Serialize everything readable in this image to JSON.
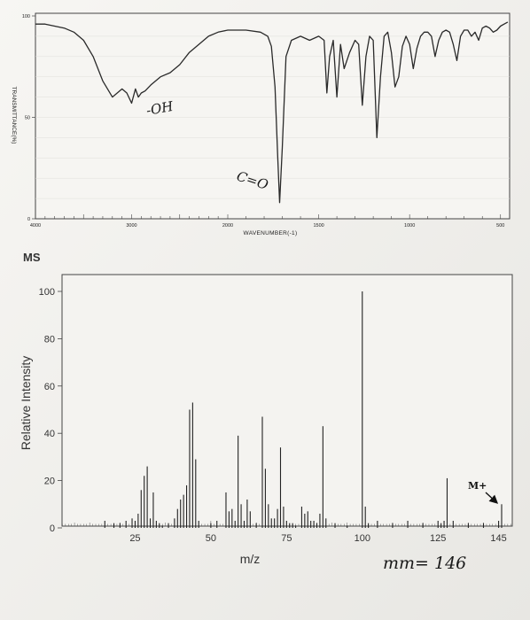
{
  "chart_data": [
    {
      "type": "line",
      "title": "",
      "xlabel": "WAVENUMBER(-1)",
      "ylabel": "TRANSMITTANCE(%)",
      "xlim": [
        4000,
        450
      ],
      "ylim": [
        0,
        100
      ],
      "x_ticks": [
        "4000",
        "3000",
        "2000",
        "1500",
        "1000",
        "500"
      ],
      "y_ticks": [
        "100",
        "50",
        "0"
      ],
      "series": [
        {
          "x": [
            4000,
            3900,
            3800,
            3700,
            3600,
            3500,
            3400,
            3300,
            3200,
            3100,
            3050,
            3000,
            2960,
            2930,
            2900,
            2860,
            2800,
            2700,
            2600,
            2500,
            2400,
            2300,
            2200,
            2100,
            2000,
            1900,
            1820,
            1780,
            1760,
            1740,
            1725,
            1715,
            1700,
            1680,
            1650,
            1600,
            1550,
            1500,
            1470,
            1455,
            1440,
            1420,
            1400,
            1380,
            1360,
            1330,
            1300,
            1280,
            1260,
            1240,
            1220,
            1200,
            1180,
            1160,
            1140,
            1120,
            1100,
            1080,
            1060,
            1040,
            1020,
            1000,
            980,
            960,
            940,
            920,
            900,
            880,
            860,
            840,
            820,
            800,
            780,
            760,
            740,
            720,
            700,
            680,
            660,
            640,
            620,
            600,
            580,
            560,
            540,
            520,
            500,
            480,
            460
          ],
          "y": [
            96,
            96,
            95,
            94,
            92,
            88,
            80,
            68,
            60,
            64,
            62,
            57,
            64,
            60,
            62,
            63,
            66,
            70,
            72,
            76,
            82,
            86,
            90,
            92,
            93,
            93,
            92,
            90,
            85,
            65,
            30,
            8,
            35,
            80,
            88,
            90,
            88,
            90,
            88,
            62,
            80,
            88,
            60,
            86,
            74,
            82,
            88,
            86,
            56,
            80,
            90,
            88,
            40,
            70,
            90,
            92,
            82,
            65,
            70,
            85,
            90,
            86,
            74,
            84,
            90,
            92,
            92,
            90,
            80,
            88,
            92,
            93,
            92,
            86,
            78,
            90,
            93,
            93,
            90,
            92,
            88,
            94,
            95,
            94,
            92,
            93,
            95,
            96,
            97
          ]
        }
      ],
      "annotations": [
        "-OH",
        "C=O"
      ]
    },
    {
      "type": "bar",
      "title": "MS",
      "xlabel": "m/z",
      "ylabel": "Relative Intensity",
      "xlim": [
        0,
        150
      ],
      "ylim": [
        0,
        110
      ],
      "x_ticks": [
        "25",
        "50",
        "75",
        "100",
        "125",
        "145"
      ],
      "y_ticks": [
        "0",
        "20",
        "40",
        "60",
        "80",
        "100"
      ],
      "x": [
        15,
        18,
        20,
        22,
        24,
        25,
        26,
        27,
        28,
        29,
        30,
        31,
        32,
        33,
        34,
        36,
        38,
        39,
        40,
        41,
        42,
        43,
        44,
        45,
        46,
        50,
        52,
        55,
        56,
        57,
        58,
        59,
        60,
        61,
        62,
        63,
        65,
        67,
        68,
        69,
        70,
        71,
        72,
        73,
        74,
        75,
        76,
        77,
        78,
        80,
        81,
        82,
        83,
        84,
        85,
        86,
        87,
        88,
        91,
        95,
        100,
        101,
        102,
        105,
        110,
        115,
        120,
        125,
        126,
        127,
        128,
        130,
        135,
        140,
        145,
        146
      ],
      "values": [
        3,
        2,
        2,
        3,
        4,
        3,
        6,
        16,
        22,
        26,
        4,
        15,
        3,
        2,
        1,
        2,
        4,
        8,
        12,
        14,
        18,
        50,
        53,
        29,
        3,
        2,
        3,
        15,
        7,
        8,
        3,
        39,
        10,
        3,
        12,
        7,
        2,
        47,
        25,
        10,
        4,
        4,
        8,
        34,
        9,
        3,
        2,
        2,
        1,
        9,
        6,
        7,
        3,
        3,
        2,
        6,
        43,
        4,
        2,
        1,
        100,
        9,
        2,
        3,
        2,
        3,
        2,
        3,
        2,
        3,
        21,
        3,
        2,
        2,
        3,
        10
      ],
      "annotations": [
        "M+",
        "mm= 146"
      ]
    }
  ]
}
